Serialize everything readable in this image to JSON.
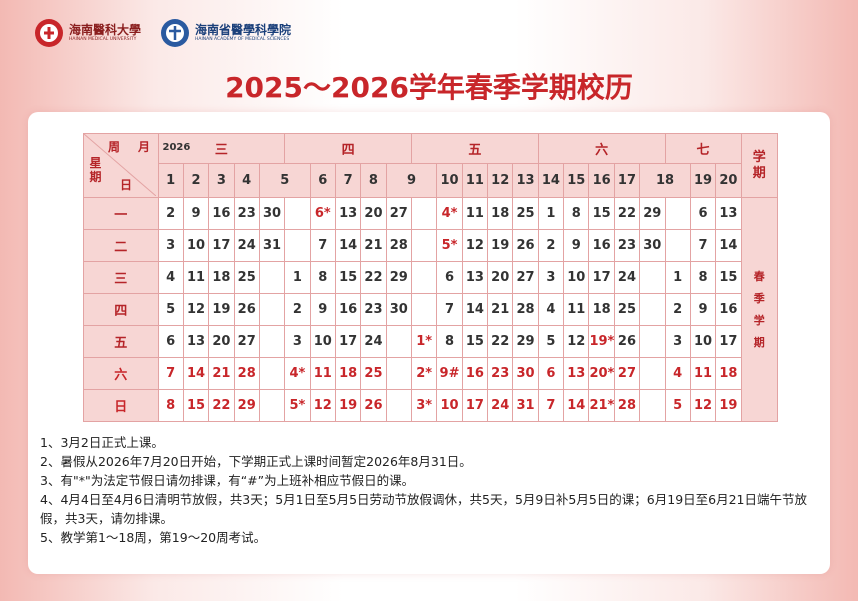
{
  "header": {
    "university": {
      "name": "海南醫科大學",
      "english": "HAINAN MEDICAL UNIVERSITY"
    },
    "academy": {
      "name": "海南省醫學科學院",
      "english": "HAINAN ACADEMY OF MEDICAL SCIENCES"
    },
    "title": "2025～2026学年春季学期校历"
  },
  "table": {
    "corner": {
      "week": "周",
      "month": "月",
      "weekday": "星期",
      "day": "日"
    },
    "year": "2026",
    "term_header": "学期",
    "term": "春季学期",
    "weekdays": [
      "一",
      "二",
      "三",
      "四",
      "五",
      "六",
      "日"
    ],
    "months": [
      {
        "label": "三",
        "columns": [
          {
            "week": "1",
            "days": [
              "2",
              "3",
              "4",
              "5",
              "6",
              "7",
              "8"
            ]
          },
          {
            "week": "2",
            "days": [
              "9",
              "10",
              "11",
              "12",
              "13",
              "14",
              "15"
            ]
          },
          {
            "week": "3",
            "days": [
              "16",
              "17",
              "18",
              "19",
              "20",
              "21",
              "22"
            ]
          },
          {
            "week": "4",
            "days": [
              "23",
              "24",
              "25",
              "26",
              "27",
              "28",
              "29"
            ]
          },
          {
            "week": "5",
            "days": [
              "30",
              "31",
              null,
              null,
              null,
              null,
              null
            ]
          }
        ]
      },
      {
        "label": "四",
        "columns": [
          {
            "week": null,
            "days": [
              null,
              null,
              "1",
              "2",
              "3",
              "4*",
              "5*"
            ]
          },
          {
            "week": "6",
            "days": [
              "6*",
              "7",
              "8",
              "9",
              "10",
              "11",
              "12"
            ]
          },
          {
            "week": "7",
            "days": [
              "13",
              "14",
              "15",
              "16",
              "17",
              "18",
              "19"
            ]
          },
          {
            "week": "8",
            "days": [
              "20",
              "21",
              "22",
              "23",
              "24",
              "25",
              "26"
            ]
          },
          {
            "week": "9",
            "days": [
              "27",
              "28",
              "29",
              "30",
              null,
              null,
              null
            ]
          }
        ]
      },
      {
        "label": "五",
        "columns": [
          {
            "week": null,
            "days": [
              null,
              null,
              null,
              null,
              "1*",
              "2*",
              "3*"
            ]
          },
          {
            "week": "10",
            "days": [
              "4*",
              "5*",
              "6",
              "7",
              "8",
              "9#",
              "10"
            ]
          },
          {
            "week": "11",
            "days": [
              "11",
              "12",
              "13",
              "14",
              "15",
              "16",
              "17"
            ]
          },
          {
            "week": "12",
            "days": [
              "18",
              "19",
              "20",
              "21",
              "22",
              "23",
              "24"
            ]
          },
          {
            "week": "13",
            "days": [
              "25",
              "26",
              "27",
              "28",
              "29",
              "30",
              "31"
            ]
          }
        ]
      },
      {
        "label": "六",
        "columns": [
          {
            "week": "14",
            "days": [
              "1",
              "2",
              "3",
              "4",
              "5",
              "6",
              "7"
            ]
          },
          {
            "week": "15",
            "days": [
              "8",
              "9",
              "10",
              "11",
              "12",
              "13",
              "14"
            ]
          },
          {
            "week": "16",
            "days": [
              "15",
              "16",
              "17",
              "18",
              "19*",
              "20*",
              "21*"
            ]
          },
          {
            "week": "17",
            "days": [
              "22",
              "23",
              "24",
              "25",
              "26",
              "27",
              "28"
            ]
          },
          {
            "week": "18",
            "days": [
              "29",
              "30",
              null,
              null,
              null,
              null,
              null
            ]
          }
        ]
      },
      {
        "label": "七",
        "columns": [
          {
            "week": null,
            "days": [
              null,
              null,
              "1",
              "2",
              "3",
              "4",
              "5"
            ]
          },
          {
            "week": "19",
            "days": [
              "6",
              "7",
              "8",
              "9",
              "10",
              "11",
              "12"
            ]
          },
          {
            "week": "20",
            "days": [
              "13",
              "14",
              "15",
              "16",
              "17",
              "18",
              "19"
            ]
          }
        ]
      }
    ]
  },
  "notes": [
    "1、3月2日正式上课。",
    "2、暑假从2026年7月20日开始，下学期正式上课时间暂定2026年8月31日。",
    "3、有\"*\"为法定节假日请勿排课，有“#”为上班补相应节假日的课。",
    "4、4月4日至4月6日清明节放假，共3天；5月1日至5月5日劳动节放假调休，共5天，5月9日补5月5日的课；6月19日至6月21日端午节放假，共3天，请勿排课。",
    "5、教学第1～18周，第19～20周考试。"
  ]
}
